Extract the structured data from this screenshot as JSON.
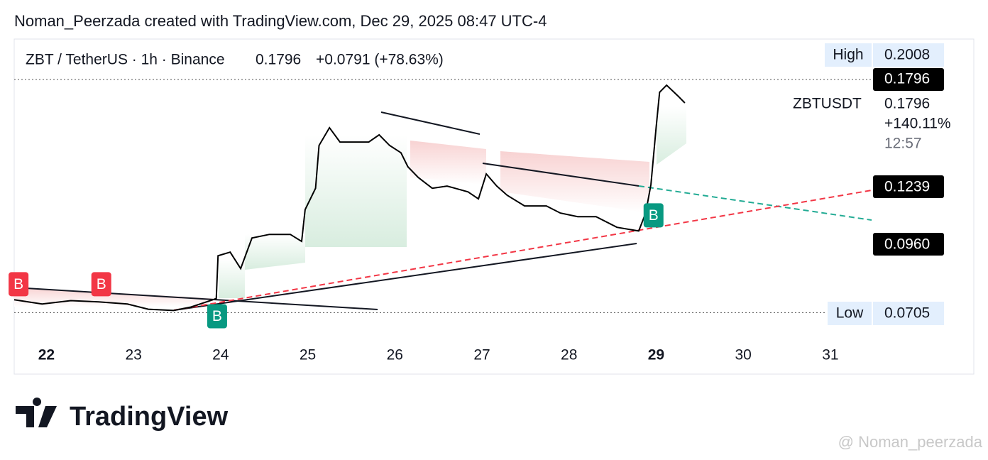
{
  "chart_data": {
    "type": "line",
    "header": "Noman_Peerzada created with TradingView.com, Dec 29, 2025 08:47 UTC-4",
    "title": "ZBT / TetherUS · 1h · Binance",
    "change": "+0.0791 (+78.63%)",
    "last_price": 0.1796,
    "legend_change": "+140.11%",
    "countdown": "12:57",
    "high": {
      "label": "High",
      "value": 0.2008
    },
    "low": {
      "label": "Low",
      "value": 0.0705
    },
    "trend_tags": [
      0.1239,
      {
        "value": 0.096,
        "label": "0.0960"
      }
    ],
    "x": [
      21.63,
      21.95,
      22.28,
      22.6,
      22.93,
      23.17,
      23.46,
      23.66,
      23.91,
      23.95,
      23.97,
      24.11,
      24.23,
      24.36,
      24.56,
      24.8,
      24.93,
      24.97,
      25.09,
      25.13,
      25.25,
      25.37,
      25.54,
      25.7,
      25.82,
      25.94,
      26.07,
      26.15,
      26.27,
      26.43,
      26.6,
      26.84,
      26.96,
      27.05,
      27.17,
      27.29,
      27.49,
      27.74,
      27.9,
      28.1,
      28.31,
      28.55,
      28.8,
      28.88,
      28.94,
      29.0,
      29.04,
      29.12,
      29.25,
      29.33
    ],
    "series": [
      {
        "name": "ZBTUSDT",
        "color": "#000000",
        "values": [
          0.0765,
          0.0745,
          0.0761,
          0.0755,
          0.0745,
          0.0721,
          0.0715,
          0.0731,
          0.0765,
          0.0771,
          0.0971,
          0.0988,
          0.0911,
          0.1054,
          0.1071,
          0.1071,
          0.1038,
          0.1187,
          0.1287,
          0.1487,
          0.157,
          0.1503,
          0.1503,
          0.1503,
          0.1537,
          0.1487,
          0.1453,
          0.1387,
          0.1337,
          0.1287,
          0.1297,
          0.127,
          0.1237,
          0.1354,
          0.1297,
          0.1254,
          0.1204,
          0.1204,
          0.1171,
          0.1154,
          0.1154,
          0.1104,
          0.1087,
          0.1171,
          0.1304,
          0.157,
          0.1736,
          0.1769,
          0.1719,
          0.1686
        ]
      }
    ],
    "signals": [
      {
        "label": "B",
        "color": "#f23645",
        "x": 21.68,
        "y": 0.0838
      },
      {
        "label": "B",
        "color": "#f23645",
        "x": 22.63,
        "y": 0.0838
      },
      {
        "label": "B",
        "color": "#089981",
        "x": 23.96,
        "y": 0.0688
      },
      {
        "label": "B",
        "color": "#089981",
        "x": 28.97,
        "y": 0.116
      }
    ],
    "xlim": [
      21.63,
      31.49
    ],
    "ylim": [
      0.059,
      0.1985
    ],
    "xticks": [
      22,
      23,
      24,
      25,
      26,
      27,
      28,
      29,
      30,
      31
    ],
    "logo": "TradingView",
    "watermark": "@ Noman_peerzada"
  }
}
